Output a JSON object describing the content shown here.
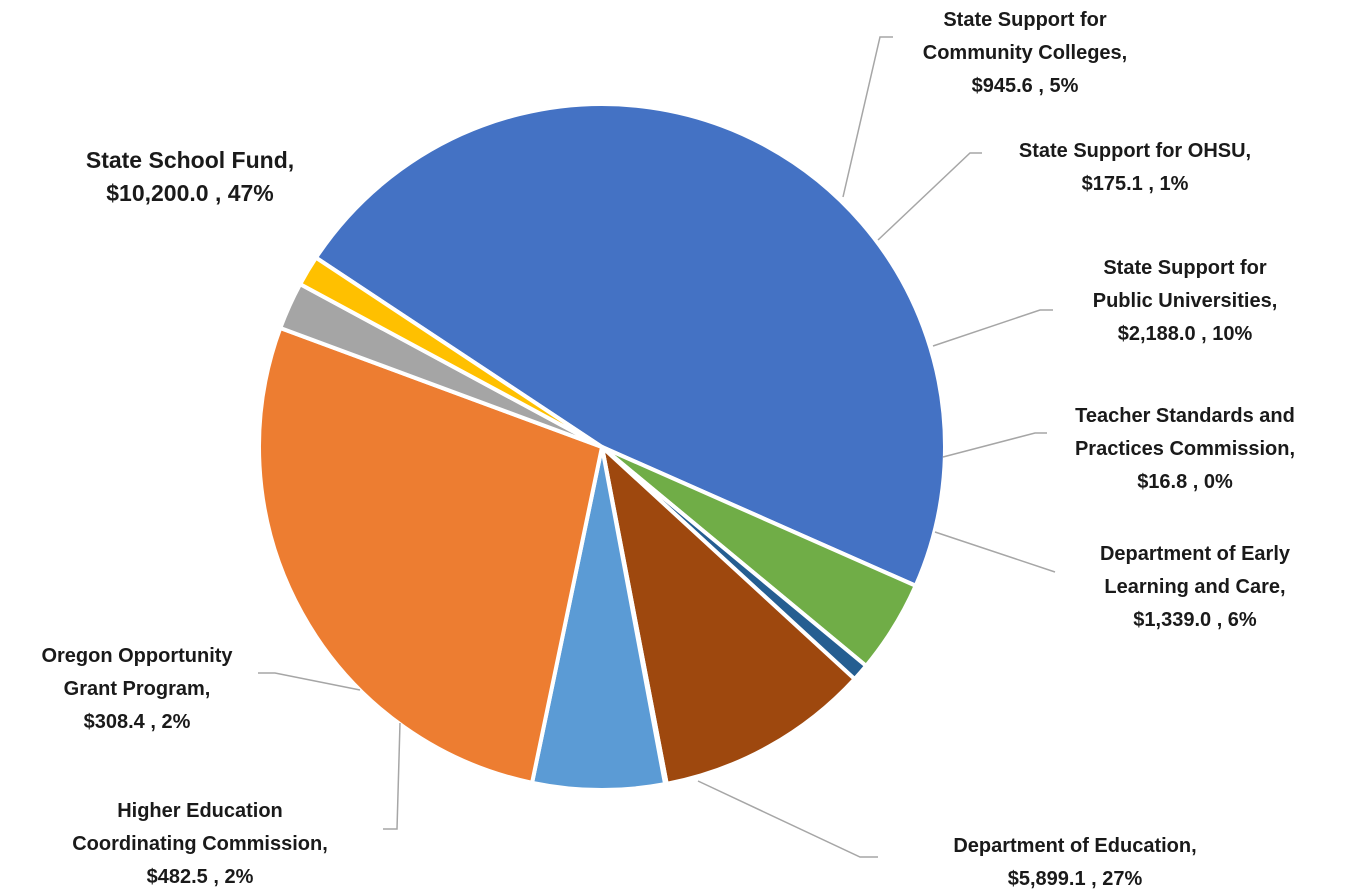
{
  "chart_data": {
    "type": "pie",
    "title": "",
    "slices": [
      {
        "name": "State School Fund",
        "value": 10200.0,
        "value_label": "$10,200.0",
        "percent_label": "47%",
        "color": "#4472C4"
      },
      {
        "name": "State Support for Community Colleges",
        "value": 945.6,
        "value_label": "$945.6",
        "percent_label": "5%",
        "color": "#70AD47"
      },
      {
        "name": "State Support for OHSU",
        "value": 175.1,
        "value_label": "$175.1",
        "percent_label": "1%",
        "color": "#255E91"
      },
      {
        "name": "State Support for Public Universities",
        "value": 2188.0,
        "value_label": "$2,188.0",
        "percent_label": "10%",
        "color": "#9E480E"
      },
      {
        "name": "Teacher Standards and Practices Commission",
        "value": 16.8,
        "value_label": "$16.8",
        "percent_label": "0%",
        "color": "#264478"
      },
      {
        "name": "Department of Early Learning and Care",
        "value": 1339.0,
        "value_label": "$1,339.0",
        "percent_label": "6%",
        "color": "#5B9BD5"
      },
      {
        "name": "Department of Education",
        "value": 5899.1,
        "value_label": "$5,899.1",
        "percent_label": "27%",
        "color": "#ED7D31"
      },
      {
        "name": "Higher Education Coordinating Commission",
        "value": 482.5,
        "value_label": "$482.5",
        "percent_label": "2%",
        "color": "#A5A5A5"
      },
      {
        "name": "Oregon Opportunity Grant Program",
        "value": 308.4,
        "value_label": "$308.4",
        "percent_label": "2%",
        "color": "#FFC000"
      }
    ],
    "labels": [
      {
        "lines": [
          "State School Fund,",
          "$10,200.0 , 47%"
        ]
      },
      {
        "lines": [
          "State Support for",
          "Community Colleges,",
          "$945.6 , 5%"
        ]
      },
      {
        "lines": [
          "State Support for OHSU,",
          "$175.1 , 1%"
        ]
      },
      {
        "lines": [
          "State Support for",
          "Public Universities,",
          "$2,188.0 , 10%"
        ]
      },
      {
        "lines": [
          "Teacher Standards and",
          "Practices Commission,",
          "$16.8 , 0%"
        ]
      },
      {
        "lines": [
          "Department of Early",
          "Learning and Care,",
          "$1,339.0 , 6%"
        ]
      },
      {
        "lines": [
          "Department of Education,",
          "$5,899.1 , 27%"
        ]
      },
      {
        "lines": [
          "Higher Education",
          "Coordinating Commission,",
          "$482.5 , 2%"
        ]
      },
      {
        "lines": [
          "Oregon Opportunity",
          "Grant Program,",
          "$308.4 , 2%"
        ]
      }
    ]
  }
}
